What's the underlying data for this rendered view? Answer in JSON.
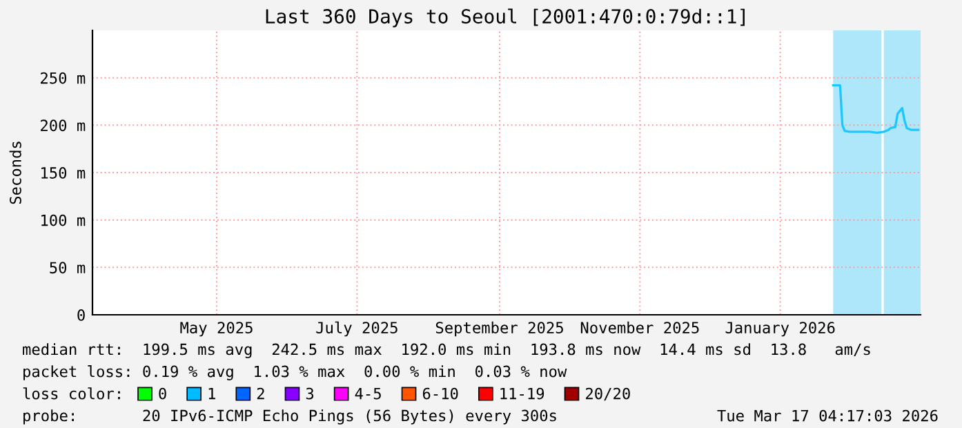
{
  "chart_data": {
    "type": "line",
    "title": "Last 360 Days to Seoul [2001:470:0:79d::1]",
    "ylabel": "Seconds",
    "x": [
      "2026-02-07",
      "2026-02-10",
      "2026-02-11",
      "2026-02-12",
      "2026-02-14",
      "2026-02-17",
      "2026-02-20",
      "2026-02-23",
      "2026-02-26",
      "2026-03-01",
      "2026-03-03",
      "2026-03-04",
      "2026-03-06",
      "2026-03-07",
      "2026-03-09",
      "2026-03-10",
      "2026-03-11",
      "2026-03-13",
      "2026-03-16"
    ],
    "series": [
      {
        "color": "#1ec8ff",
        "values": [
          242,
          242,
          200,
          194,
          193,
          193,
          193,
          193,
          192,
          193,
          195,
          197,
          198,
          212,
          218,
          205,
          197,
          195,
          195
        ]
      },
      {
        "name": "0",
        "color": "#00ff00",
        "values": [
          null,
          null,
          null,
          null,
          null,
          null,
          null,
          null,
          null,
          null,
          null,
          null,
          null,
          null,
          null,
          null,
          null,
          null,
          null
        ]
      },
      {
        "name": "1",
        "color": "#00bbff",
        "values": [
          null,
          null,
          null,
          null,
          null,
          null,
          null,
          null,
          null,
          null,
          null,
          null,
          null,
          null,
          null,
          null,
          null,
          null,
          null
        ]
      },
      {
        "name": "2",
        "color": "#0066ff",
        "values": [
          null,
          null,
          null,
          null,
          null,
          null,
          null,
          null,
          null,
          null,
          null,
          null,
          null,
          null,
          null,
          null,
          null,
          null,
          null
        ]
      },
      {
        "name": "3",
        "color": "#8800ff",
        "values": [
          null,
          null,
          null,
          null,
          null,
          null,
          null,
          null,
          null,
          null,
          null,
          null,
          null,
          null,
          null,
          null,
          null,
          null,
          null
        ]
      },
      {
        "name": "4-5",
        "color": "#ff00ff",
        "values": [
          null,
          null,
          null,
          null,
          null,
          null,
          null,
          null,
          null,
          null,
          null,
          null,
          null,
          null,
          null,
          null,
          null,
          null,
          null
        ]
      },
      {
        "name": "6-10",
        "color": "#ff5500",
        "values": [
          null,
          null,
          null,
          null,
          null,
          null,
          null,
          null,
          null,
          null,
          null,
          null,
          null,
          null,
          null,
          null,
          null,
          null,
          null
        ]
      },
      {
        "name": "11-19",
        "color": "#ff0000",
        "values": [
          null,
          null,
          null,
          null,
          null,
          null,
          null,
          null,
          null,
          null,
          null,
          null,
          null,
          null,
          null,
          null,
          null,
          null,
          null
        ]
      },
      {
        "name": "20/20",
        "color": "#a10000",
        "values": [
          null,
          null,
          null,
          null,
          null,
          null,
          null,
          null,
          null,
          null,
          null,
          null,
          null,
          null,
          null,
          null,
          null,
          null,
          null
        ]
      }
    ],
    "legend_title": "loss color:",
    "legend": "bottom",
    "bands": [
      {
        "axis": "x",
        "from": "2026-02-07",
        "to": "2026-02-28",
        "color": "#aee6fa"
      },
      {
        "axis": "x",
        "from": "2026-03-01",
        "to": "2026-03-17",
        "color": "#aee6fa"
      }
    ],
    "xlim": [
      "2025-03-22",
      "2026-03-17"
    ],
    "xticks": [
      {
        "value": "2025-05-15",
        "label": "May 2025"
      },
      {
        "value": "2025-07-15",
        "label": "July 2025"
      },
      {
        "value": "2025-09-15",
        "label": "September 2025"
      },
      {
        "value": "2025-11-15",
        "label": "November 2025"
      },
      {
        "value": "2026-01-15",
        "label": "January 2026"
      }
    ],
    "ylim": [
      0,
      300
    ],
    "yticks": [
      0,
      {
        "value": 50,
        "label": "50 m"
      },
      {
        "value": 100,
        "label": "100 m"
      },
      {
        "value": 150,
        "label": "150 m"
      },
      {
        "value": 200,
        "label": "200 m"
      },
      {
        "value": 250,
        "label": "250 m"
      }
    ],
    "grid": true,
    "marker": "none",
    "line_style": "solid",
    "annotations": [
      "median rtt:  199.5 ms avg  242.5 ms max  192.0 ms min  193.8 ms now  14.4 ms sd  13.8   am/s",
      "packet loss: 0.19 % avg  1.03 % max  0.00 % min  0.03 % now",
      "probe:       20 IPv6-ICMP Echo Pings (56 Bytes) every 300s",
      "Tue Mar 17 04:17:03 2026"
    ]
  }
}
